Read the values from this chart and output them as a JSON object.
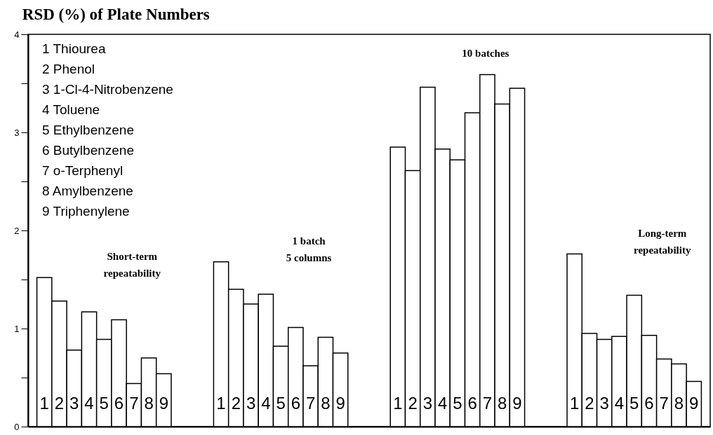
{
  "chart_data": {
    "type": "bar",
    "title": "RSD (%) of Plate Numbers",
    "categories": [
      "Short-term\nrepeatability",
      "1 batch\n5 columns",
      "10 batches",
      "Long-term\nrepeatability"
    ],
    "series": [
      {
        "name": "1",
        "color": "#ffffff",
        "values": [
          1.52,
          1.68,
          2.85,
          1.76
        ]
      },
      {
        "name": "2",
        "color": "#ffffff",
        "values": [
          1.28,
          1.4,
          2.61,
          0.95
        ]
      },
      {
        "name": "3",
        "color": "#ffffff",
        "values": [
          0.78,
          1.25,
          3.46,
          0.89
        ]
      },
      {
        "name": "4",
        "color": "#ffffff",
        "values": [
          1.17,
          1.35,
          2.83,
          0.92
        ]
      },
      {
        "name": "5",
        "color": "#ffffff",
        "values": [
          0.89,
          0.82,
          2.72,
          1.34
        ]
      },
      {
        "name": "6",
        "color": "#ffffff",
        "values": [
          1.09,
          1.01,
          3.2,
          0.93
        ]
      },
      {
        "name": "7",
        "color": "#ffffff",
        "values": [
          0.44,
          0.62,
          3.59,
          0.69
        ]
      },
      {
        "name": "8",
        "color": "#ffffff",
        "values": [
          0.7,
          0.91,
          3.29,
          0.64
        ]
      },
      {
        "name": "9",
        "color": "#ffffff",
        "values": [
          0.54,
          0.75,
          3.45,
          0.46
        ]
      }
    ],
    "annotations": [
      "1  Thiourea",
      "2  Phenol",
      "3  1-Cl-4-Nitrobenzene",
      "4  Toluene",
      "5  Ethylbenzene",
      "6  Butylbenzene",
      "7  o-Terphenyl",
      "8  Amylbenzene",
      "9  Triphenylene"
    ],
    "ylim": [
      0,
      4
    ],
    "yticks": [
      0,
      {
        "value": 0.5,
        "label": null
      },
      1,
      {
        "value": 1.5,
        "label": null
      },
      2,
      {
        "value": 2.5,
        "label": null
      },
      3,
      {
        "value": 3.5,
        "label": null
      },
      4
    ],
    "tick_labels": "y",
    "grid": false
  }
}
